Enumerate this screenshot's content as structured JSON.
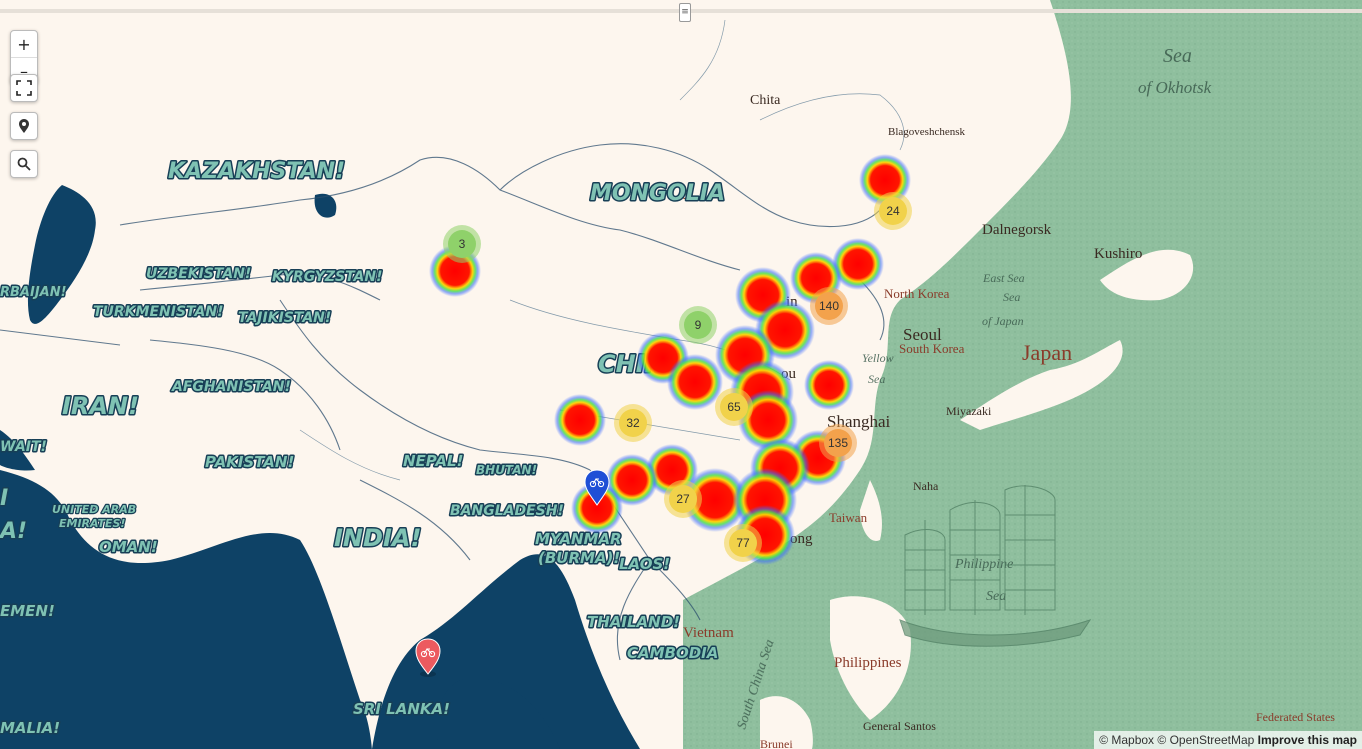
{
  "controls": {
    "zoom_in": "+",
    "zoom_out": "–",
    "fullscreen_icon": "fullscreen-icon",
    "locate_icon": "map-pin-icon",
    "search_icon": "search-icon"
  },
  "divider_handle": "≡",
  "colors": {
    "sea_left": "#0e4266",
    "land": "#fdf6ee",
    "sea_right": "#8fbf9e",
    "country_label_fill": "#7fc2b3",
    "country_label_stroke": "#173f56",
    "marker_blue": "#1f4fd6",
    "marker_red": "#ec5a5f"
  },
  "country_labels": [
    {
      "text": "KAZAKHSTAN!",
      "size": "big"
    },
    {
      "text": "MONGOLIA",
      "size": "big"
    },
    {
      "text": "UZBEKISTAN!",
      "size": "small"
    },
    {
      "text": "KYRGYZSTAN!",
      "size": "small"
    },
    {
      "text": "RBAIJAN!",
      "size": "small"
    },
    {
      "text": "TURKMENISTAN!",
      "size": "small"
    },
    {
      "text": "TAJIKISTAN!",
      "size": "small"
    },
    {
      "text": "AFGHANISTAN!",
      "size": "small"
    },
    {
      "text": "IRAN!",
      "size": "big"
    },
    {
      "text": "CHINA",
      "size": "big"
    },
    {
      "text": "WAIT!",
      "size": "small"
    },
    {
      "text": "PAKISTAN!",
      "size": "small"
    },
    {
      "text": "NEPAL!",
      "size": "small"
    },
    {
      "text": "BHUTAN!",
      "size": "small"
    },
    {
      "text": "UNITED ARAB",
      "size": "tiny"
    },
    {
      "text": "EMIRATES!",
      "size": "tiny"
    },
    {
      "text": "BANGLADESH!",
      "size": "small"
    },
    {
      "text": "INDIA!",
      "size": "big"
    },
    {
      "text": "MYANMAR",
      "size": "small"
    },
    {
      "text": "(BURMA)!",
      "size": "small"
    },
    {
      "text": "OMAN!",
      "size": "small"
    },
    {
      "text": "LAOS!",
      "size": "small"
    },
    {
      "text": "EMEN!",
      "size": "small"
    },
    {
      "text": "THAILAND!",
      "size": "small"
    },
    {
      "text": "CAMBODIA",
      "size": "small"
    },
    {
      "text": "SRI LANKA!",
      "size": "small"
    },
    {
      "text": "MALIA!",
      "size": "small"
    },
    {
      "text": "I",
      "size": "big"
    },
    {
      "text": "A!",
      "size": "big"
    }
  ],
  "place_labels": [
    {
      "text": "Chita",
      "kind": "city"
    },
    {
      "text": "Blagoveshchensk",
      "kind": "city-small"
    },
    {
      "text": "Dalnegorsk",
      "kind": "city"
    },
    {
      "text": "Kushiro",
      "kind": "city"
    },
    {
      "text": "North Korea",
      "kind": "country"
    },
    {
      "text": "Seoul",
      "kind": "city-big"
    },
    {
      "text": "South Korea",
      "kind": "country"
    },
    {
      "text": "Japan",
      "kind": "country-big"
    },
    {
      "text": "Miyazaki",
      "kind": "city-small"
    },
    {
      "text": "Shanghai",
      "kind": "city-big"
    },
    {
      "text": "Naha",
      "kind": "city-small"
    },
    {
      "text": "Taiwan",
      "kind": "country"
    },
    {
      "text": "Vietnam",
      "kind": "country"
    },
    {
      "text": "Philippines",
      "kind": "country"
    },
    {
      "text": "General Santos",
      "kind": "city-small"
    },
    {
      "text": "Federated States",
      "kind": "country-small"
    },
    {
      "text": "Brunei",
      "kind": "country-small"
    },
    {
      "text": "ong",
      "kind": "city"
    },
    {
      "text": "in",
      "kind": "city"
    },
    {
      "text": "ou",
      "kind": "city"
    },
    {
      "text": "a",
      "kind": "country"
    }
  ],
  "sea_labels": [
    {
      "text": "Sea"
    },
    {
      "text": "of Okhotsk"
    },
    {
      "text": "East Sea"
    },
    {
      "text": "Sea"
    },
    {
      "text": "of Japan"
    },
    {
      "text": "Yellow"
    },
    {
      "text": "Sea"
    },
    {
      "text": "Philippine"
    },
    {
      "text": "Sea"
    },
    {
      "text": "South China Sea"
    }
  ],
  "clusters": [
    {
      "count": "3",
      "level": "low"
    },
    {
      "count": "24",
      "level": "mid"
    },
    {
      "count": "140",
      "level": "high"
    },
    {
      "count": "9",
      "level": "low"
    },
    {
      "count": "65",
      "level": "mid"
    },
    {
      "count": "32",
      "level": "mid"
    },
    {
      "count": "135",
      "level": "high"
    },
    {
      "count": "27",
      "level": "mid"
    },
    {
      "count": "77",
      "level": "mid"
    }
  ],
  "markers": [
    {
      "color": "#1f4fd6",
      "icon": "bicycle-icon"
    },
    {
      "color": "#ec5a5f",
      "icon": "bicycle-icon"
    }
  ],
  "attribution": {
    "mapbox": "© Mapbox",
    "osm": "© OpenStreetMap",
    "improve": "Improve this map"
  }
}
